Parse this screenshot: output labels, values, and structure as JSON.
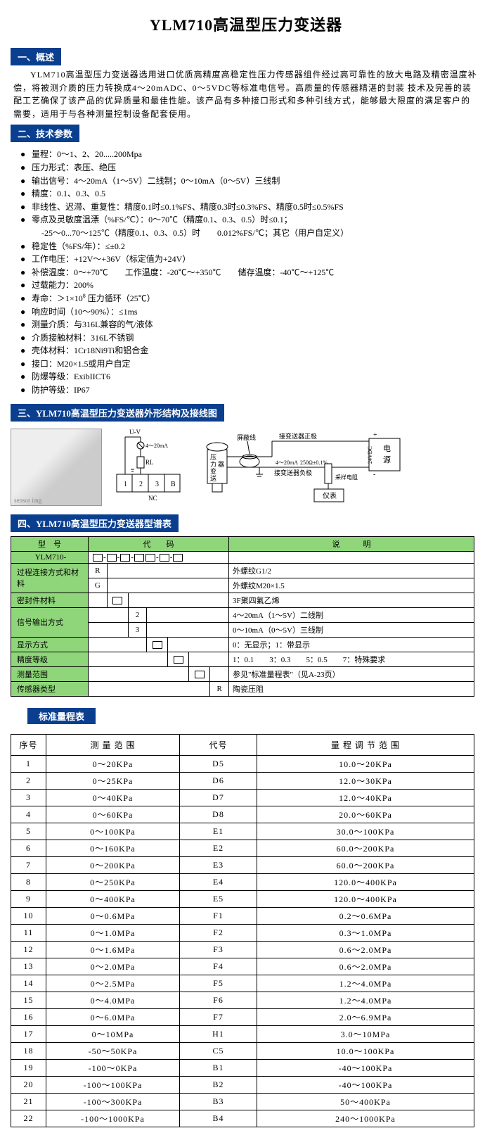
{
  "title": "YLM710高温型压力变送器",
  "sections": {
    "s1": "一、概述",
    "s2": "二、技术参数",
    "s3": "三、YLM710高温型压力变送器外形结构及接线图",
    "s4": "四、YLM710高温型压力变送器型谱表",
    "s5": "标准量程表"
  },
  "overview": "YLM710高温型压力变送器选用进口优质高精度高稳定性压力传感器组件经过高可靠性的放大电路及精密温度补偿，将被测介质的压力转换成4～20mADC、0～5VDC等标准电信号。高质量的传感器精湛的封装 技术及完善的装配工艺确保了该产品的优异质量和最佳性能。该产品有多种接口形式和多种引线方式，能够最大限度的满足客户的需要，适用于与各种测量控制设备配套使用。",
  "params": [
    "量程：0～1、2、20.....200Mpa",
    "压力形式：表压、绝压",
    "输出信号：4～20mA（1～5V）二线制；0～10mA（0～5V）三线制",
    "精度：0.1、0.3、0.5",
    "非线性、迟滞、重复性：精度0.1时≤0.1%FS、精度0.3时≤0.3%FS、精度0.5时≤0.5%FS",
    "零点及灵敏度温漂（%FS/℃）：0～70℃（精度0.1、0.3、0.5）时≤0.1；",
    "稳定性（%FS/年）：≤±0.2",
    "工作电压：+12V～+36V（标定值为+24V）",
    "补偿温度：0～+70℃　　工作温度：-20℃～+350℃　　储存温度：-40℃～+125℃",
    "过载能力：200%",
    "寿命：＞1×10 压力循环（25℃）",
    "响应时间（10～90%）：≤1ms",
    "测量介质：与316L兼容的气/液体",
    "介质接触材料：316L不锈钢",
    "壳体材料：1Cr18Ni9Ti和铝合金",
    "接口：M20×1.5或用户自定",
    "防爆等级：ExibIICT6",
    "防护等级：IP67"
  ],
  "param_sub": "-25～0...70～125℃（精度0.1、0.3、0.5）时　　0.012%FS/℃；其它（用户自定义）",
  "param_sup": "8",
  "diagram": {
    "uv": "U-V",
    "ma": "4～20mA",
    "rl": "RL",
    "t1": "1",
    "t2": "2",
    "t3": "3",
    "tb": "B",
    "nc": "NC",
    "shield": "屏蔽线",
    "pos": "接变送器正极",
    "neg": "接变送器负极",
    "sensor": "压力变送器",
    "ma2": "4～20mA",
    "r250": "250Ω±0.1%",
    "sample": "采样电阻",
    "meter": "仪表",
    "power": "电源",
    "v24": "24VDC",
    "plus": "+",
    "minus": "-"
  },
  "spec": {
    "hd_model": "型　号",
    "hd_code": "代　　码",
    "hd_desc": "说　　　明",
    "model_val": "YLM710-",
    "rows": [
      {
        "label": "过程连接方式和材料",
        "r": [
          {
            "c": "R",
            "d": "外螺纹G1/2"
          },
          {
            "c": "G",
            "d": "外螺纹M20×1.5"
          }
        ]
      },
      {
        "label": "密封件材料",
        "r": [
          {
            "c": "",
            "d": "3F聚四氟乙烯"
          }
        ]
      },
      {
        "label": "信号输出方式",
        "r": [
          {
            "c": "2",
            "d": "4～20mA（1～5V）二线制"
          },
          {
            "c": "3",
            "d": "0～10mA（0～5V）三线制"
          }
        ]
      },
      {
        "label": "显示方式",
        "r": [
          {
            "c": "",
            "d": "0：无显示；1：带显示"
          }
        ]
      },
      {
        "label": "精度等级",
        "r": [
          {
            "c": "",
            "d": "1：0.1　　3：0.3　　5：0.5　　7：特殊要求"
          }
        ]
      },
      {
        "label": "测量范围",
        "r": [
          {
            "c": "",
            "d": "参见\"标准量程表\"（见A-23页）"
          }
        ]
      },
      {
        "label": "传感器类型",
        "r": [
          {
            "c": "R",
            "d": "陶瓷压阻"
          }
        ]
      }
    ]
  },
  "range": {
    "headers": [
      "序号",
      "测 量 范 围",
      "代号",
      "量 程 调 节 范 围"
    ],
    "rows": [
      [
        "1",
        "0～20KPa",
        "D5",
        "10.0～20KPa"
      ],
      [
        "2",
        "0～25KPa",
        "D6",
        "12.0～30KPa"
      ],
      [
        "3",
        "0～40KPa",
        "D7",
        "12.0～40KPa"
      ],
      [
        "4",
        "0～60KPa",
        "D8",
        "20.0～60KPa"
      ],
      [
        "5",
        "0～100KPa",
        "E1",
        "30.0～100KPa"
      ],
      [
        "6",
        "0～160KPa",
        "E2",
        "60.0～200KPa"
      ],
      [
        "7",
        "0～200KPa",
        "E3",
        "60.0～200KPa"
      ],
      [
        "8",
        "0～250KPa",
        "E4",
        "120.0～400KPa"
      ],
      [
        "9",
        "0～400KPa",
        "E5",
        "120.0～400KPa"
      ],
      [
        "10",
        "0～0.6MPa",
        "F1",
        "0.2～0.6MPa"
      ],
      [
        "11",
        "0～1.0MPa",
        "F2",
        "0.3～1.0MPa"
      ],
      [
        "12",
        "0～1.6MPa",
        "F3",
        "0.6～2.0MPa"
      ],
      [
        "13",
        "0～2.0MPa",
        "F4",
        "0.6～2.0MPa"
      ],
      [
        "14",
        "0～2.5MPa",
        "F5",
        "1.2～4.0MPa"
      ],
      [
        "15",
        "0～4.0MPa",
        "F6",
        "1.2～4.0MPa"
      ],
      [
        "16",
        "0～6.0MPa",
        "F7",
        "2.0～6.9MPa"
      ],
      [
        "17",
        "0～10MPa",
        "H1",
        "3.0～10MPa"
      ],
      [
        "18",
        "-50～50KPa",
        "C5",
        "10.0～100KPa"
      ],
      [
        "19",
        "-100～0KPa",
        "B1",
        "-40～100KPa"
      ],
      [
        "20",
        "-100～100KPa",
        "B2",
        "-40～100KPa"
      ],
      [
        "21",
        "-100～300KPa",
        "B3",
        "50～400KPa"
      ],
      [
        "22",
        "-100～1000KPa",
        "B4",
        "240～1000KPa"
      ]
    ]
  },
  "colors": {
    "header_bg": "#0a3f8f",
    "header_fg": "#ffffff",
    "green": "#8fd67a",
    "border": "#000000"
  }
}
